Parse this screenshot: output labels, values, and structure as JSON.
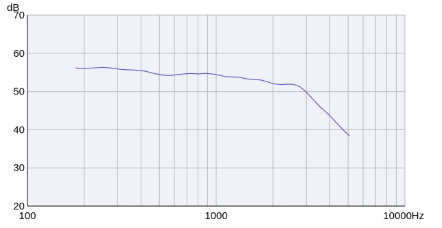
{
  "chart_data": {
    "type": "line",
    "title": "",
    "x_unit": "Hz",
    "y_unit": "dB",
    "x_scale": "log",
    "xlim": [
      100,
      10000
    ],
    "ylim": [
      20,
      70
    ],
    "x_tick_labels": [
      "100",
      "1000",
      "10000"
    ],
    "y_tick_labels": [
      "20",
      "30",
      "40",
      "50",
      "60",
      "70"
    ],
    "grid": true,
    "colors": {
      "plot_background": "#f1f1f9",
      "grid": "#b8b8b8",
      "axis": "#000000",
      "line": "#5a5ab4"
    },
    "series": [
      {
        "x": [
          180,
          190,
          200,
          215,
          230,
          250,
          270,
          300,
          330,
          370,
          420,
          470,
          520,
          570,
          620,
          680,
          740,
          800,
          870,
          950,
          1030,
          1120,
          1220,
          1330,
          1450,
          1580,
          1720,
          1870,
          2030,
          2200,
          2380,
          2580,
          2780,
          3000,
          3250,
          3550,
          3900,
          4300,
          4700,
          5100
        ],
        "y": [
          56.2,
          56.0,
          56.0,
          56.1,
          56.2,
          56.3,
          56.2,
          55.9,
          55.7,
          55.6,
          55.3,
          54.7,
          54.3,
          54.2,
          54.4,
          54.6,
          54.7,
          54.6,
          54.7,
          54.6,
          54.3,
          53.9,
          53.8,
          53.7,
          53.3,
          53.1,
          53.0,
          52.5,
          52.0,
          51.8,
          51.9,
          51.8,
          51.2,
          49.8,
          48.0,
          46.0,
          44.2,
          42.0,
          40.0,
          38.3
        ]
      }
    ]
  }
}
